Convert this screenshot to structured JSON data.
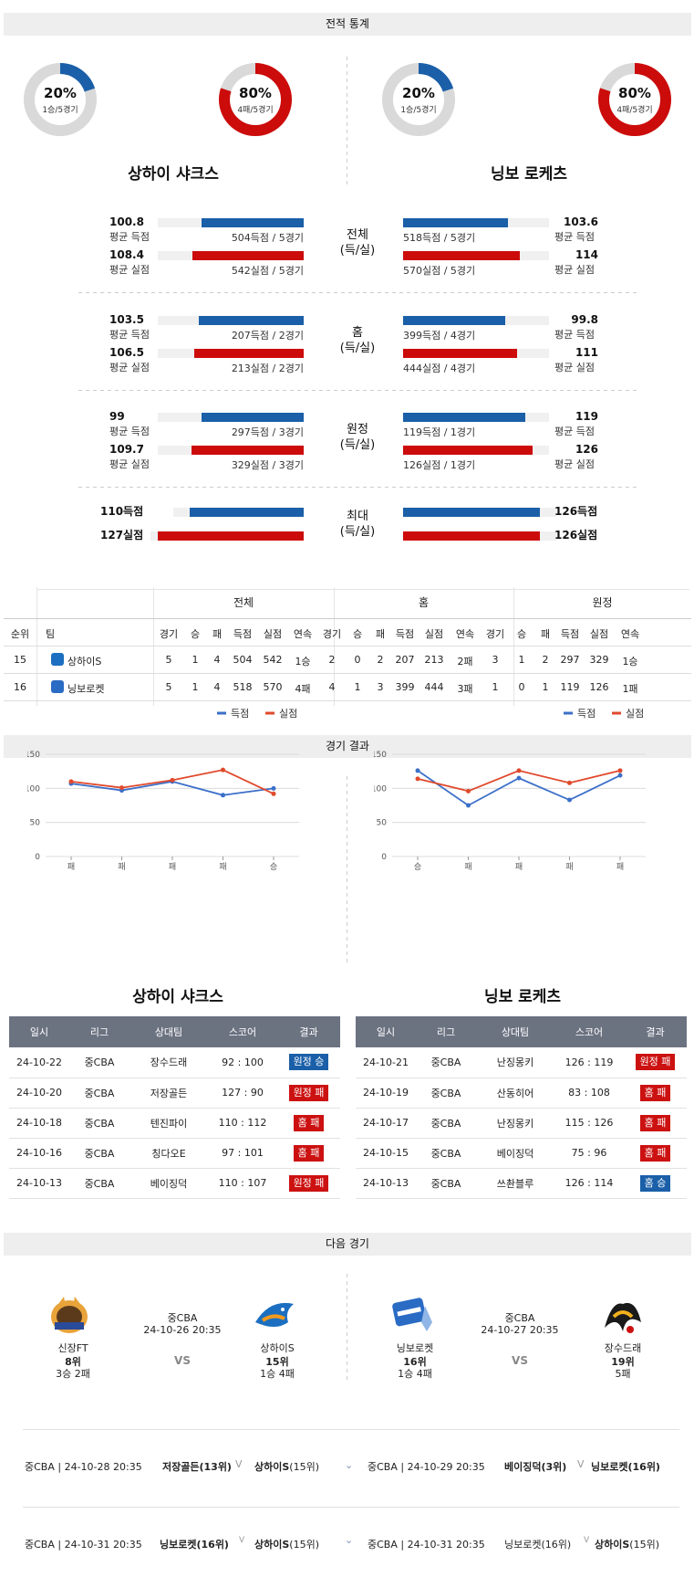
{
  "sections": {
    "stats_title": "전적 통계",
    "results_title": "경기 결과",
    "next_title": "다음 경기"
  },
  "teams": [
    {
      "name": "상하이 샤크스",
      "win_pct": "20%",
      "win_sub": "1승/5경기",
      "lose_pct": "80%",
      "lose_sub": "4패/5경기",
      "win_frac": 0.2,
      "lose_frac": 0.8
    },
    {
      "name": "닝보 로케츠",
      "win_pct": "20%",
      "win_sub": "1승/5경기",
      "lose_pct": "80%",
      "lose_sub": "4패/5경기",
      "win_frac": 0.2,
      "lose_frac": 0.8
    }
  ],
  "colors": {
    "blue": "#1a5fa8",
    "red": "#cc0b0b",
    "grey": "#d9d9d9"
  },
  "stat_groups": [
    {
      "label1": "전체",
      "label2": "(득/실)",
      "left": {
        "score": "100.8",
        "score_lbl": "평균 득점",
        "score_cap": "504득점 / 5경기",
        "score_frac": 0.7,
        "concede": "108.4",
        "concede_lbl": "평균 실점",
        "concede_cap": "542실점 / 5경기",
        "concede_frac": 0.76
      },
      "right": {
        "score": "103.6",
        "score_lbl": "평균 득점",
        "score_cap": "518득점 / 5경기",
        "score_frac": 0.72,
        "concede": "114",
        "concede_lbl": "평균 실점",
        "concede_cap": "570실점 / 5경기",
        "concede_frac": 0.8
      }
    },
    {
      "label1": "홈",
      "label2": "(득/실)",
      "left": {
        "score": "103.5",
        "score_lbl": "평균 득점",
        "score_cap": "207득점 / 2경기",
        "score_frac": 0.72,
        "concede": "106.5",
        "concede_lbl": "평균 실점",
        "concede_cap": "213실점 / 2경기",
        "concede_frac": 0.75
      },
      "right": {
        "score": "99.8",
        "score_lbl": "평균 득점",
        "score_cap": "399득점 / 4경기",
        "score_frac": 0.7,
        "concede": "111",
        "concede_lbl": "평균 실점",
        "concede_cap": "444실점 / 4경기",
        "concede_frac": 0.78
      }
    },
    {
      "label1": "원정",
      "label2": "(득/실)",
      "left": {
        "score": "99",
        "score_lbl": "평균 득점",
        "score_cap": "297득점 / 3경기",
        "score_frac": 0.7,
        "concede": "109.7",
        "concede_lbl": "평균 실점",
        "concede_cap": "329실점 / 3경기",
        "concede_frac": 0.77
      },
      "right": {
        "score": "119",
        "score_lbl": "평균 득점",
        "score_cap": "119득점 / 1경기",
        "score_frac": 0.84,
        "concede": "126",
        "concede_lbl": "평균 실점",
        "concede_cap": "126실점 / 1경기",
        "concede_frac": 0.89
      }
    }
  ],
  "max_group": {
    "label1": "최대",
    "label2": "(득/실)",
    "left_score": "110득점",
    "left_concede": "127실점",
    "left_score_frac": 0.78,
    "left_concede_frac": 0.89,
    "right_score": "126득점",
    "right_concede": "126실점",
    "right_score_frac": 0.89,
    "right_concede_frac": 0.89
  },
  "rank_table": {
    "groups": [
      "전체",
      "홈",
      "원정"
    ],
    "headers": [
      "순위",
      "팀",
      "경기",
      "승",
      "패",
      "득점",
      "실점",
      "연속",
      "경기",
      "승",
      "패",
      "득점",
      "실점",
      "연속",
      "경기",
      "승",
      "패",
      "득점",
      "실점",
      "연속"
    ],
    "rows": [
      [
        "15",
        "상하이S",
        "5",
        "1",
        "4",
        "504",
        "542",
        "1승",
        "2",
        "0",
        "2",
        "207",
        "213",
        "2패",
        "3",
        "1",
        "2",
        "297",
        "329",
        "1승"
      ],
      [
        "16",
        "닝보로켓",
        "5",
        "1",
        "4",
        "518",
        "570",
        "4패",
        "4",
        "1",
        "3",
        "399",
        "444",
        "3패",
        "1",
        "0",
        "1",
        "119",
        "126",
        "1패"
      ]
    ]
  },
  "chart_data": [
    {
      "type": "line",
      "categories": [
        "패",
        "패",
        "패",
        "패",
        "승"
      ],
      "series": [
        {
          "name": "득점",
          "values": [
            107,
            97,
            110,
            90,
            100
          ],
          "color": "#3b6fc9"
        },
        {
          "name": "실점",
          "values": [
            110,
            101,
            112,
            127,
            92
          ],
          "color": "#e0492c"
        }
      ],
      "yticks": [
        "0",
        "50",
        "100",
        "150"
      ],
      "ylim": [
        0,
        150
      ]
    },
    {
      "type": "line",
      "categories": [
        "승",
        "패",
        "패",
        "패",
        "패"
      ],
      "series": [
        {
          "name": "득점",
          "values": [
            126,
            75,
            115,
            83,
            119
          ],
          "color": "#3b6fc9"
        },
        {
          "name": "실점",
          "values": [
            114,
            96,
            126,
            108,
            126
          ],
          "color": "#e0492c"
        }
      ],
      "yticks": [
        "0",
        "50",
        "100",
        "150"
      ],
      "ylim": [
        0,
        150
      ]
    }
  ],
  "results": [
    {
      "title": "상하이 샤크스",
      "headers": [
        "일시",
        "리그",
        "상대팀",
        "스코어",
        "결과"
      ],
      "rows": [
        {
          "date": "24-10-22",
          "league": "중CBA",
          "opp": "장수드래",
          "score": "92 : 100",
          "result": "원정 승",
          "color": "b"
        },
        {
          "date": "24-10-20",
          "league": "중CBA",
          "opp": "저장골든",
          "score": "127 : 90",
          "result": "원정 패",
          "color": "r"
        },
        {
          "date": "24-10-18",
          "league": "중CBA",
          "opp": "텐진파이",
          "score": "110 : 112",
          "result": "홈 패",
          "color": "r"
        },
        {
          "date": "24-10-16",
          "league": "중CBA",
          "opp": "칭다오E",
          "score": "97 : 101",
          "result": "홈 패",
          "color": "r"
        },
        {
          "date": "24-10-13",
          "league": "중CBA",
          "opp": "베이징덕",
          "score": "110 : 107",
          "result": "원정 패",
          "color": "r"
        }
      ]
    },
    {
      "title": "닝보 로케츠",
      "headers": [
        "일시",
        "리그",
        "상대팀",
        "스코어",
        "결과"
      ],
      "rows": [
        {
          "date": "24-10-21",
          "league": "중CBA",
          "opp": "난징몽키",
          "score": "126 : 119",
          "result": "원정 패",
          "color": "r"
        },
        {
          "date": "24-10-19",
          "league": "중CBA",
          "opp": "산동히어",
          "score": "83 : 108",
          "result": "홈 패",
          "color": "r"
        },
        {
          "date": "24-10-17",
          "league": "중CBA",
          "opp": "난징몽키",
          "score": "115 : 126",
          "result": "홈 패",
          "color": "r"
        },
        {
          "date": "24-10-15",
          "league": "중CBA",
          "opp": "베이징덕",
          "score": "75 : 96",
          "result": "홈 패",
          "color": "r"
        },
        {
          "date": "24-10-13",
          "league": "중CBA",
          "opp": "쓰촨블루",
          "score": "126 : 114",
          "result": "홈 승",
          "color": "b"
        }
      ]
    }
  ],
  "next_games": [
    {
      "league": "중CBA",
      "datetime": "24-10-26 20:35",
      "vs": "VS",
      "home": {
        "name": "신장FT",
        "rank": "8위",
        "record": "3승 2패"
      },
      "away": {
        "name": "상하이S",
        "rank": "15위",
        "record": "1승 4패"
      }
    },
    {
      "league": "중CBA",
      "datetime": "24-10-27 20:35",
      "vs": "VS",
      "home": {
        "name": "닝보로켓",
        "rank": "16위",
        "record": "1승 4패"
      },
      "away": {
        "name": "장수드래",
        "rank": "19위",
        "record": "5패"
      }
    }
  ],
  "upcoming": [
    {
      "left": {
        "info": "중CBA | 24-10-28 20:35",
        "team1": "저장골든(13위)",
        "team2": "상하이S",
        "team2_rank": "(15위)"
      },
      "right": {
        "info": "중CBA | 24-10-29 20:35",
        "team1": "베이징덕(3위)",
        "team2": "닝보로켓(16위)"
      }
    },
    {
      "left": {
        "info": "중CBA | 24-10-31 20:35",
        "team1": "닝보로켓(16위)",
        "team2": "상하이S",
        "team2_rank": "(15위)"
      },
      "right": {
        "info": "중CBA | 24-10-31 20:35",
        "team1": "닝보로켓(16위)",
        "team2": "상하이S",
        "team2_rank": "(15위)"
      }
    }
  ]
}
